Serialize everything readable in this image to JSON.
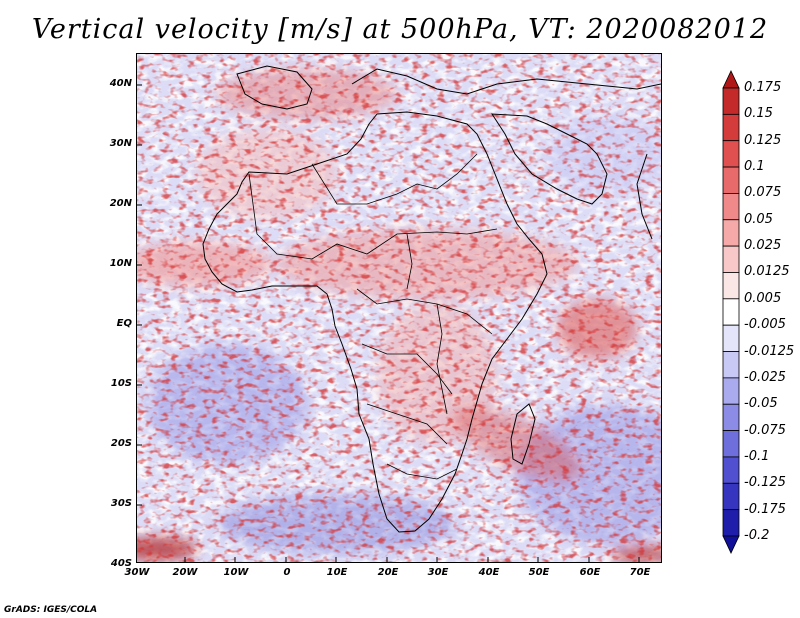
{
  "title": "Vertical velocity [m/s] at 500hPa, VT: 2020082012",
  "credit": "GrADS: IGES/COLA",
  "axes": {
    "lat_labels": [
      "40N",
      "30N",
      "20N",
      "10N",
      "EQ",
      "10S",
      "20S",
      "30S",
      "40S"
    ],
    "lon_labels": [
      "30W",
      "20W",
      "10W",
      "0",
      "10E",
      "20E",
      "30E",
      "40E",
      "50E",
      "60E",
      "70E"
    ]
  },
  "colorbar": {
    "labels": [
      "0.175",
      "0.15",
      "0.125",
      "0.1",
      "0.075",
      "0.05",
      "0.025",
      "0.0125",
      "0.005",
      "-0.005",
      "-0.0125",
      "-0.025",
      "-0.05",
      "-0.075",
      "-0.1",
      "-0.125",
      "-0.175",
      "-0.2"
    ],
    "colors": [
      "#b01818",
      "#c42a2a",
      "#d43c3c",
      "#e05050",
      "#e86a6a",
      "#f08a8a",
      "#f5a9a9",
      "#f8c8c8",
      "#fbe6e6",
      "#ffffff",
      "#e4e4fb",
      "#c9c9f5",
      "#aaaaee",
      "#8c8ce6",
      "#6e6edc",
      "#5050d0",
      "#3535c0",
      "#1e1eaa",
      "#10109a"
    ]
  },
  "colors": {
    "positive": "#d23c3c",
    "negative": "#4848d8",
    "background": "#e8e8f8",
    "coast": "#000000"
  }
}
